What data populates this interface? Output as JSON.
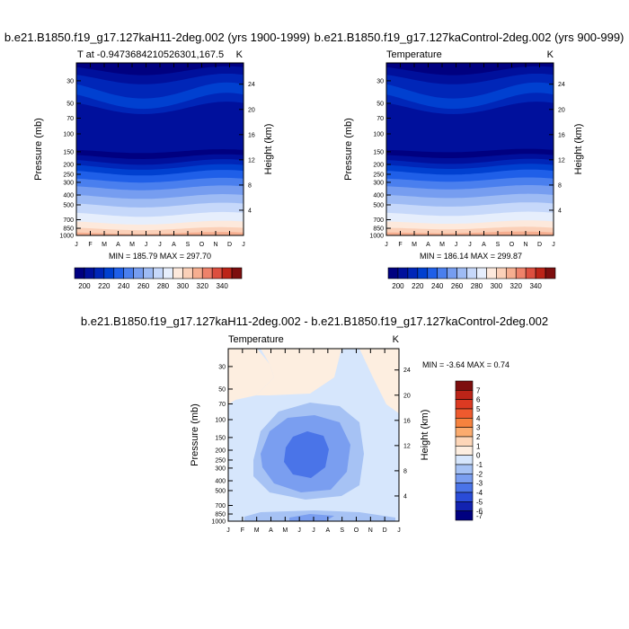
{
  "figure_title": "",
  "chart_data": [
    {
      "type": "heatmap",
      "title": "b.e21.B1850.f19_g17.127kaH11-2deg.002 (yrs 1900-1999)",
      "left_label": "T at -0.9473684210526301,167.5",
      "right_label": "K",
      "xlabel": "",
      "ylabel": "Pressure (mb)",
      "ylabel_right": "Height (km)",
      "x_ticks": [
        "J",
        "F",
        "M",
        "A",
        "M",
        "J",
        "J",
        "A",
        "S",
        "O",
        "N",
        "D",
        "J"
      ],
      "y_ticks": [
        30,
        50,
        70,
        100,
        150,
        200,
        250,
        300,
        400,
        500,
        700,
        850,
        1000
      ],
      "height_ticks": [
        4,
        8,
        12,
        16,
        20,
        24
      ],
      "ylim": [
        1000,
        20
      ],
      "min_max_text": "MIN = 185.79 MAX = 297.70",
      "colorbar_ticks": [
        200,
        220,
        240,
        260,
        280,
        300,
        320,
        340
      ],
      "colorbar_levels": [
        190,
        200,
        210,
        220,
        230,
        240,
        250,
        260,
        270,
        280,
        290,
        300,
        310,
        320,
        330,
        340,
        350
      ]
    },
    {
      "type": "heatmap",
      "title": "b.e21.B1850.f19_g17.127kaControl-2deg.002 (yrs 900-999)",
      "left_label": "Temperature",
      "right_label": "K",
      "xlabel": "",
      "ylabel": "Pressure (mb)",
      "ylabel_right": "Height (km)",
      "x_ticks": [
        "J",
        "F",
        "M",
        "A",
        "M",
        "J",
        "J",
        "A",
        "S",
        "O",
        "N",
        "D",
        "J"
      ],
      "y_ticks": [
        30,
        50,
        70,
        100,
        150,
        200,
        250,
        300,
        400,
        500,
        700,
        850,
        1000
      ],
      "height_ticks": [
        4,
        8,
        12,
        16,
        20,
        24
      ],
      "ylim": [
        1000,
        20
      ],
      "min_max_text": "MIN = 186.14 MAX = 299.87",
      "colorbar_ticks": [
        200,
        220,
        240,
        260,
        280,
        300,
        320,
        340
      ],
      "colorbar_levels": [
        190,
        200,
        210,
        220,
        230,
        240,
        250,
        260,
        270,
        280,
        290,
        300,
        310,
        320,
        330,
        340,
        350
      ]
    },
    {
      "type": "heatmap",
      "title": "b.e21.B1850.f19_g17.127kaH11-2deg.002 - b.e21.B1850.f19_g17.127kaControl-2deg.002",
      "left_label": "Temperature",
      "right_label": "K",
      "xlabel": "",
      "ylabel": "Pressure (mb)",
      "ylabel_right": "Height (km)",
      "x_ticks": [
        "J",
        "F",
        "M",
        "A",
        "M",
        "J",
        "J",
        "A",
        "S",
        "O",
        "N",
        "D",
        "J"
      ],
      "y_ticks": [
        30,
        50,
        70,
        100,
        150,
        200,
        250,
        300,
        400,
        500,
        700,
        850,
        1000
      ],
      "height_ticks": [
        4,
        8,
        12,
        16,
        20,
        24
      ],
      "ylim": [
        1000,
        20
      ],
      "min_max_text": "MIN =  -3.64 MAX =   0.74",
      "colorbar_ticks": [
        7,
        6,
        5,
        4,
        3,
        2,
        1,
        0,
        -1,
        -2,
        -3,
        -4,
        -5,
        -6,
        -7
      ],
      "colorbar_orientation": "vertical"
    }
  ],
  "colors": {
    "temp_scale": [
      "#000080",
      "#00109c",
      "#0026b8",
      "#0040d0",
      "#1f5fe8",
      "#4a7fee",
      "#769df0",
      "#9ebbf4",
      "#c6d8fa",
      "#e6eefc",
      "#fde9dc",
      "#fbd0b8",
      "#f6ae90",
      "#ee826a",
      "#dc4f3f",
      "#bc2418",
      "#7d0e0e"
    ],
    "diff_scale": [
      "#7d0e0e",
      "#bc2418",
      "#dc3a22",
      "#ee5a2e",
      "#f6823e",
      "#fbab6e",
      "#fdd6b8",
      "#fdeee0",
      "#d6e6fc",
      "#a6c2f4",
      "#7a9ef0",
      "#4a74e8",
      "#2a4cd8",
      "#1222b0",
      "#000080"
    ]
  }
}
